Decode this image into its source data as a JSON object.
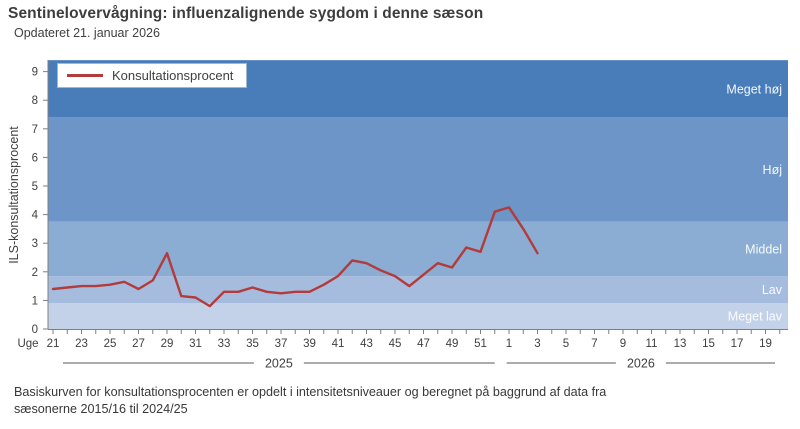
{
  "header": {
    "title": "Sentinelovervågning: influenzalignende sygdom i denne sæson",
    "subtitle": "Opdateret 21. januar 2026"
  },
  "legend": {
    "label": "Konsultationsprocent"
  },
  "footer": {
    "line1": "Basiskurven for konsultationsprocenten er opdelt i intensitetsniveauer og beregnet på baggrund af data fra",
    "line2": "sæsonerne  2015/16  til 2024/25"
  },
  "chart_data": {
    "type": "line",
    "title": "Sentinelovervågning: influenzalignende sygdom i denne sæson",
    "subtitle": "Opdateret 21. januar 2026",
    "xlabel": "Uge",
    "ylabel": "ILS-konsultationsprocent",
    "ylim": [
      0,
      9.4
    ],
    "yticks": [
      0,
      1,
      2,
      3,
      4,
      5,
      6,
      7,
      8,
      9
    ],
    "x_tick_labels": [
      "21",
      "23",
      "25",
      "27",
      "29",
      "31",
      "33",
      "35",
      "37",
      "39",
      "41",
      "43",
      "45",
      "47",
      "49",
      "51",
      "1",
      "3",
      "5",
      "7",
      "9",
      "11",
      "13",
      "15",
      "17",
      "19"
    ],
    "years": [
      {
        "label": "2025"
      },
      {
        "label": "2026"
      }
    ],
    "grid": false,
    "legend_position": "top-left",
    "bands": [
      {
        "label": "Meget lav",
        "from": 0,
        "to": 0.9,
        "color": "#c4d2e9"
      },
      {
        "label": "Lav",
        "from": 0.9,
        "to": 1.85,
        "color": "#a6bcdf"
      },
      {
        "label": "Middel",
        "from": 1.85,
        "to": 3.75,
        "color": "#8badd3"
      },
      {
        "label": "Høj",
        "from": 3.75,
        "to": 7.4,
        "color": "#6e95c8"
      },
      {
        "label": "Meget høj",
        "from": 7.4,
        "to": 9.4,
        "color": "#497dba"
      }
    ],
    "series": [
      {
        "name": "Konsultationsprocent",
        "color": "#b23b3b",
        "x": [
          21,
          22,
          23,
          24,
          25,
          26,
          27,
          28,
          29,
          30,
          31,
          32,
          33,
          34,
          35,
          36,
          37,
          38,
          39,
          40,
          41,
          42,
          43,
          44,
          45,
          46,
          47,
          48,
          49,
          50,
          51,
          52,
          1,
          2,
          3
        ],
        "values": [
          1.4,
          1.45,
          1.5,
          1.5,
          1.55,
          1.65,
          1.4,
          1.7,
          2.65,
          1.15,
          1.1,
          0.8,
          1.3,
          1.3,
          1.45,
          1.3,
          1.25,
          1.3,
          1.3,
          1.55,
          1.85,
          2.4,
          2.3,
          2.05,
          1.85,
          1.5,
          1.9,
          2.3,
          2.15,
          2.85,
          2.7,
          4.1,
          4.25,
          3.5,
          2.65
        ]
      }
    ]
  }
}
